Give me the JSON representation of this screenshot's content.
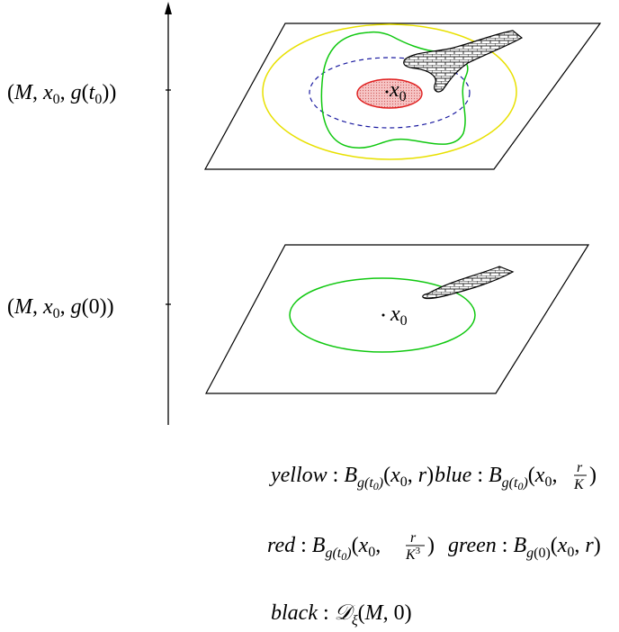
{
  "axis": {
    "upper_label": "(M, x0, g(t0))",
    "lower_label": "(M, x0, g(0))"
  },
  "upper_plane": {
    "point_label": "x0"
  },
  "lower_plane": {
    "point_label": "x0"
  },
  "legend": {
    "yellow": {
      "word": "yellow",
      "text": "B_{g(t0)}(x0, r)"
    },
    "blue": {
      "word": "blue",
      "text": "B_{g(t0)}(x0, r/K)"
    },
    "red": {
      "word": "red",
      "text": "B_{g(t0)}(x0, r/K^3)"
    },
    "green": {
      "word": "green",
      "text": "B_{g(0)}(x0, r)"
    },
    "black": {
      "word": "black",
      "text": "D_ξ(M, 0)"
    }
  },
  "colors": {
    "yellow": "#e8e000",
    "blue": "#1a1aa0",
    "red": "#e02020",
    "red_fill": "#f4b8b8",
    "green": "#10c810",
    "black": "#000000"
  }
}
